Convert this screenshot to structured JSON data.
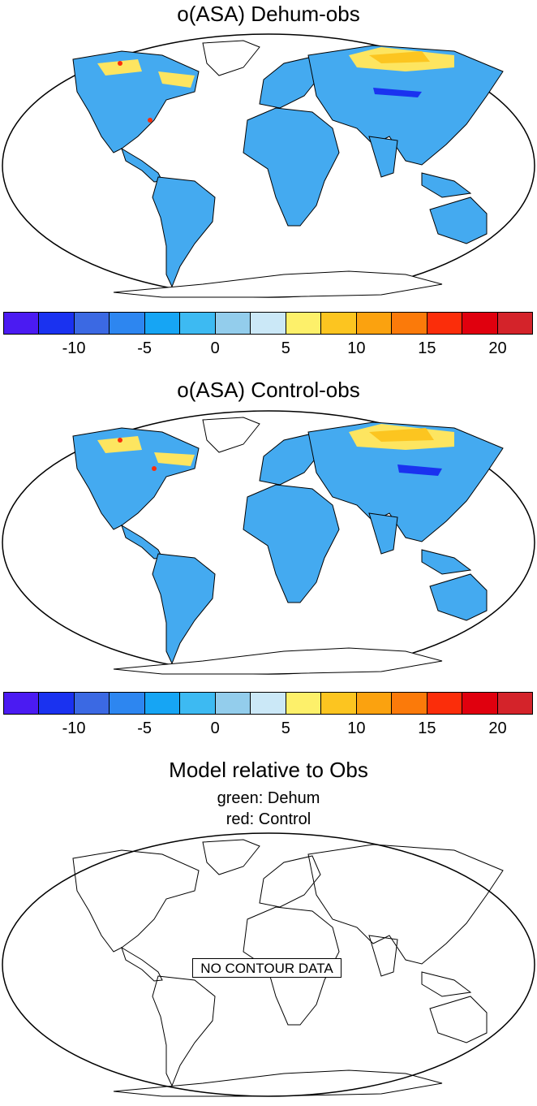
{
  "panels": [
    {
      "title": "o(ASA) Dehum-obs"
    },
    {
      "title": "o(ASA) Control-obs"
    },
    {
      "title": "Model relative to Obs",
      "subtitle_1": "green: Dehum",
      "subtitle_2": "red: Control",
      "no_data_label": "NO CONTOUR DATA"
    }
  ],
  "colorbar": {
    "colors": [
      "#4b1bf2",
      "#1a32f0",
      "#3b69e3",
      "#2d86f0",
      "#16a5f4",
      "#3dbaf2",
      "#93cdec",
      "#cbe8f7",
      "#fdf06a",
      "#fcc520",
      "#fba20f",
      "#fb7a0a",
      "#fb2d0a",
      "#e0000e",
      "#d4232a"
    ],
    "labels": [
      "-10",
      "-5",
      "0",
      "5",
      "10",
      "15",
      "20"
    ],
    "label_box_index": [
      1,
      3,
      5,
      7,
      9,
      11,
      13
    ]
  },
  "legend_colors": {
    "land_bias": "#44aaf0",
    "high_lat_warm": "#fde560",
    "coastline": "#000000"
  }
}
